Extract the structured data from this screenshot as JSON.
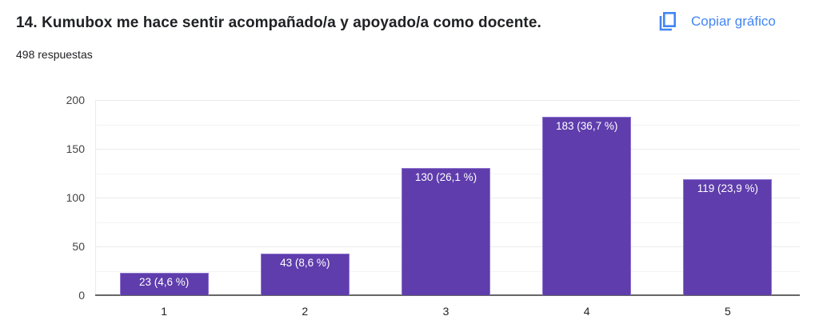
{
  "header": {
    "title": "14. Kumubox me hace sentir acompañado/a y apoyado/a como docente.",
    "responses": "498 respuestas",
    "copy_label": "Copiar gráfico",
    "copy_icon": "copy-icon"
  },
  "colors": {
    "bar": "#5f3dac",
    "link": "#4285f4"
  },
  "chart_data": {
    "type": "bar",
    "title": "14. Kumubox me hace sentir acompañado/a y apoyado/a como docente.",
    "subtitle": "498 respuestas",
    "categories": [
      "1",
      "2",
      "3",
      "4",
      "5"
    ],
    "values": [
      23,
      43,
      130,
      183,
      119
    ],
    "percentages": [
      4.6,
      8.6,
      26.1,
      36.7,
      23.9
    ],
    "data_labels": [
      "23 (4,6 %)",
      "43 (8,6 %)",
      "130 (26,1 %)",
      "183 (36,7 %)",
      "119 (23,9 %)"
    ],
    "xlabel": "",
    "ylabel": "",
    "ylim": [
      0,
      200
    ],
    "yticks": [
      "200",
      "150",
      "100",
      "50",
      "0"
    ],
    "grid": true,
    "legend": "none"
  }
}
